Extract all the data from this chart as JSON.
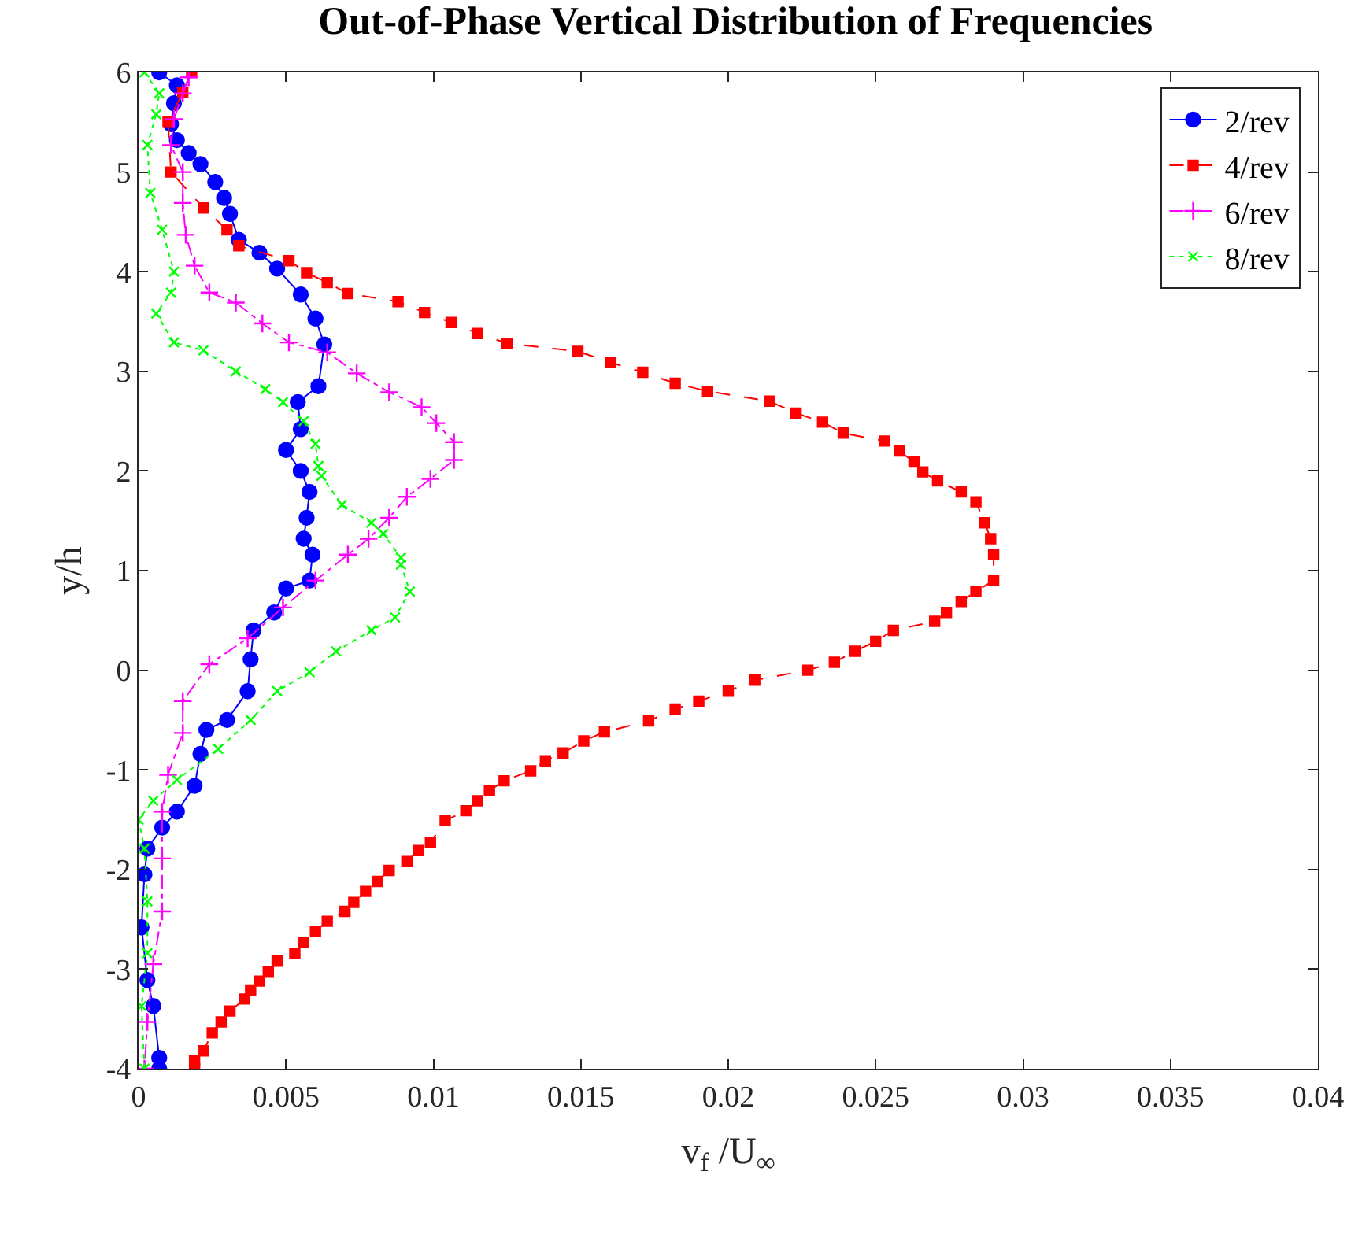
{
  "chart_data": {
    "type": "line",
    "title": "Out-of-Phase Vertical Distribution of Frequencies",
    "xlabel": "v$_{f}$ /U$_{∞}$",
    "ylabel": "y/h",
    "xlim": [
      0,
      0.04
    ],
    "xticks": [
      0,
      0.005,
      0.01,
      0.015,
      0.02,
      0.025,
      0.03,
      0.035,
      0.04
    ],
    "ylim": [
      -4,
      6
    ],
    "yticks": [
      -4,
      -3,
      -2,
      -1,
      0,
      1,
      2,
      3,
      4,
      5,
      6
    ],
    "legend": "top right",
    "series": [
      {
        "name": "2/rev",
        "color": "#0000ff",
        "marker": "circle",
        "line_style": "solid",
        "x": [
          0.0007,
          0.0013,
          0.0012,
          0.0011,
          0.0013,
          0.0017,
          0.0021,
          0.0026,
          0.0029,
          0.0031,
          0.0034,
          0.0041,
          0.0047,
          0.0055,
          0.006,
          0.0063,
          0.0061,
          0.0054,
          0.0055,
          0.005,
          0.0055,
          0.0058,
          0.0057,
          0.0056,
          0.0059,
          0.0058,
          0.005,
          0.0046,
          0.0039,
          0.0038,
          0.0037,
          0.003,
          0.0023,
          0.0021,
          0.0019,
          0.0013,
          0.0008,
          0.0003,
          0.0002,
          0.0001,
          0.0003,
          0.0005,
          0.0007,
          0.0007
        ],
        "values": [
          6.0,
          5.87,
          5.69,
          5.48,
          5.32,
          5.19,
          5.08,
          4.9,
          4.74,
          4.58,
          4.32,
          4.19,
          4.03,
          3.77,
          3.53,
          3.27,
          2.85,
          2.69,
          2.42,
          2.21,
          2.0,
          1.79,
          1.53,
          1.32,
          1.16,
          0.9,
          0.82,
          0.58,
          0.4,
          0.11,
          -0.21,
          -0.5,
          -0.6,
          -0.84,
          -1.16,
          -1.42,
          -1.58,
          -1.79,
          -2.05,
          -2.58,
          -3.11,
          -3.37,
          -3.89,
          -4.0
        ]
      },
      {
        "name": "4/rev",
        "color": "#ff0000",
        "marker": "square",
        "line_style": "dashed",
        "x": [
          0.0018,
          0.0015,
          0.001,
          0.0011,
          0.0022,
          0.003,
          0.0034,
          0.0051,
          0.0057,
          0.0064,
          0.0071,
          0.0088,
          0.0097,
          0.0106,
          0.0115,
          0.0125,
          0.0149,
          0.016,
          0.0171,
          0.0182,
          0.0193,
          0.0214,
          0.0223,
          0.0232,
          0.0239,
          0.0253,
          0.0258,
          0.0263,
          0.0266,
          0.0271,
          0.0279,
          0.0284,
          0.0287,
          0.0289,
          0.029,
          0.029,
          0.0284,
          0.0279,
          0.0274,
          0.027,
          0.0256,
          0.025,
          0.0243,
          0.0236,
          0.0227,
          0.0209,
          0.02,
          0.019,
          0.0182,
          0.0173,
          0.0158,
          0.0151,
          0.0144,
          0.0138,
          0.0133,
          0.0124,
          0.0119,
          0.0115,
          0.0111,
          0.0104,
          0.0099,
          0.0095,
          0.0091,
          0.0085,
          0.0081,
          0.0077,
          0.0073,
          0.007,
          0.0064,
          0.006,
          0.0056,
          0.0053,
          0.0047,
          0.0044,
          0.0041,
          0.0038,
          0.0036,
          0.0031,
          0.0028,
          0.0025,
          0.0022,
          0.0019,
          0.0019
        ],
        "values": [
          6.0,
          5.8,
          5.5,
          5.0,
          4.64,
          4.42,
          4.26,
          4.11,
          3.99,
          3.89,
          3.78,
          3.7,
          3.59,
          3.49,
          3.38,
          3.28,
          3.2,
          3.09,
          2.99,
          2.88,
          2.8,
          2.7,
          2.58,
          2.49,
          2.38,
          2.3,
          2.2,
          2.09,
          1.99,
          1.9,
          1.79,
          1.69,
          1.48,
          1.32,
          1.16,
          0.9,
          0.79,
          0.69,
          0.58,
          0.49,
          0.4,
          0.29,
          0.19,
          0.08,
          0.0,
          -0.1,
          -0.21,
          -0.31,
          -0.39,
          -0.51,
          -0.62,
          -0.71,
          -0.83,
          -0.91,
          -1.01,
          -1.11,
          -1.21,
          -1.31,
          -1.41,
          -1.51,
          -1.73,
          -1.81,
          -1.92,
          -2.01,
          -2.12,
          -2.22,
          -2.33,
          -2.42,
          -2.52,
          -2.62,
          -2.73,
          -2.84,
          -2.92,
          -3.03,
          -3.12,
          -3.21,
          -3.3,
          -3.42,
          -3.53,
          -3.64,
          -3.82,
          -3.92,
          -4.0
        ]
      },
      {
        "name": "6/rev",
        "color": "#ff00ff",
        "marker": "plus",
        "line_style": "dashdot",
        "x": [
          0.0017,
          0.0015,
          0.0012,
          0.0011,
          0.0015,
          0.0015,
          0.0016,
          0.0019,
          0.0024,
          0.0033,
          0.0042,
          0.0051,
          0.0064,
          0.0074,
          0.0085,
          0.0096,
          0.0101,
          0.0107,
          0.0107,
          0.0099,
          0.0091,
          0.0085,
          0.0078,
          0.0071,
          0.006,
          0.0049,
          0.0037,
          0.0024,
          0.0015,
          0.0015,
          0.001,
          0.0008,
          0.0008,
          0.0008,
          0.0005,
          0.0003,
          0.0002
        ],
        "values": [
          5.95,
          5.79,
          5.53,
          5.27,
          5.0,
          4.69,
          4.37,
          4.06,
          3.79,
          3.69,
          3.48,
          3.29,
          3.19,
          2.98,
          2.79,
          2.64,
          2.48,
          2.29,
          2.11,
          1.92,
          1.74,
          1.53,
          1.32,
          1.16,
          0.9,
          0.63,
          0.32,
          0.06,
          -0.31,
          -0.63,
          -1.05,
          -1.42,
          -1.89,
          -2.42,
          -2.95,
          -3.53,
          -4.0
        ]
      },
      {
        "name": "8/rev",
        "color": "#00ff00",
        "marker": "cross",
        "line_style": "dotted",
        "x": [
          0.0002,
          0.0007,
          0.0006,
          0.0003,
          0.0004,
          0.0008,
          0.0012,
          0.0011,
          0.0006,
          0.0012,
          0.0022,
          0.0033,
          0.0043,
          0.0049,
          0.0056,
          0.006,
          0.0061,
          0.0062,
          0.0069,
          0.0079,
          0.0083,
          0.0089,
          0.0089,
          0.0092,
          0.0087,
          0.0079,
          0.0067,
          0.0058,
          0.0047,
          0.0038,
          0.0027,
          0.0013,
          0.0005,
          0.0,
          0.0002,
          0.0003,
          0.0003,
          0.0001,
          0.0002
        ],
        "values": [
          6.0,
          5.79,
          5.58,
          5.27,
          4.79,
          4.42,
          4.0,
          3.79,
          3.58,
          3.29,
          3.21,
          3.0,
          2.82,
          2.69,
          2.5,
          2.27,
          2.05,
          1.95,
          1.66,
          1.48,
          1.37,
          1.13,
          1.06,
          0.79,
          0.53,
          0.4,
          0.19,
          -0.02,
          -0.21,
          -0.5,
          -0.79,
          -1.1,
          -1.31,
          -1.5,
          -1.79,
          -2.32,
          -2.84,
          -3.37,
          -4.0
        ]
      }
    ]
  }
}
